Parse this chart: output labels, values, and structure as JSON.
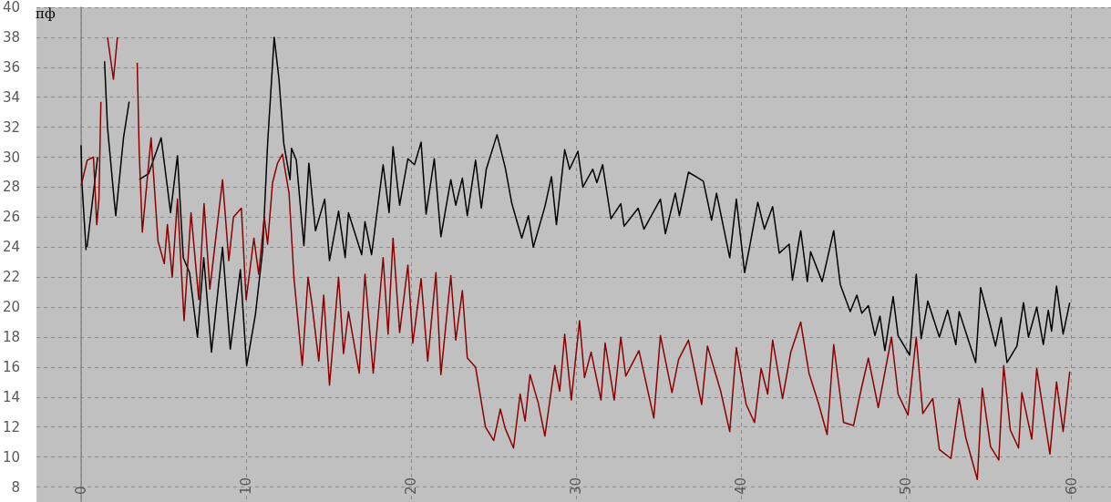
{
  "chart_data": {
    "type": "line",
    "ylabel": "пф",
    "xlim": [
      -2.7,
      62.4
    ],
    "ylim": [
      7,
      40
    ],
    "xticks": [
      0,
      10,
      20,
      30,
      40,
      50,
      60
    ],
    "yticks": [
      8,
      10,
      12,
      14,
      16,
      18,
      20,
      22,
      24,
      26,
      28,
      30,
      32,
      34,
      36,
      38,
      40
    ],
    "grid": true,
    "marker": "none",
    "line_style": "solid",
    "series": [
      {
        "color": "#000000",
        "x": [
          0.0,
          0.05,
          0.3,
          0.33,
          0.36,
          1.0,
          1.24,
          1.42,
          1.6,
          2.0,
          2.1,
          2.57,
          2.91,
          2.98,
          3.52,
          4.09,
          4.85,
          5.42,
          5.84,
          6.19,
          6.57,
          7.05,
          7.43,
          7.9,
          8.57,
          9.04,
          9.65,
          10.03,
          10.56,
          11.0,
          11.3,
          11.7,
          11.99,
          12.28,
          12.66,
          12.75,
          13.04,
          13.5,
          13.8,
          14.2,
          14.76,
          15.05,
          15.6,
          16.0,
          16.2,
          17.0,
          17.2,
          17.6,
          18.3,
          18.66,
          18.9,
          19.3,
          19.8,
          20.2,
          20.6,
          20.9,
          21.4,
          21.8,
          22.4,
          22.7,
          23.1,
          23.4,
          23.9,
          24.25,
          24.55,
          25.2,
          25.7,
          26.1,
          26.7,
          27.1,
          27.4,
          28.1,
          28.5,
          28.8,
          29.3,
          29.6,
          30.1,
          30.4,
          31.0,
          31.25,
          31.6,
          32.1,
          32.7,
          32.9,
          33.75,
          34.1,
          35.1,
          35.4,
          36.0,
          36.25,
          36.8,
          37.7,
          38.2,
          38.5,
          39.3,
          39.7,
          40.2,
          40.5,
          41.0,
          41.4,
          41.9,
          42.3,
          42.9,
          43.1,
          43.6,
          44.0,
          44.2,
          44.9,
          45.6,
          46.0,
          46.6,
          47.0,
          47.3,
          47.7,
          48.1,
          48.4,
          48.7,
          49.2,
          49.5,
          50.2,
          50.6,
          50.9,
          51.3,
          52.0,
          52.5,
          53.0,
          53.2,
          54.2,
          54.5,
          55.0,
          55.4,
          55.75,
          56.1,
          56.7,
          57.1,
          57.4,
          57.9,
          58.3,
          58.6,
          58.8,
          59.1,
          59.5,
          59.9
        ],
        "values": [
          30.8,
          28.3,
          23.8,
          null,
          24.0,
          30.0,
          null,
          36.4,
          32.0,
          27.2,
          26.1,
          31.3,
          33.7,
          null,
          28.5,
          28.9,
          31.3,
          26.3,
          30.1,
          23.3,
          22.3,
          18.0,
          23.3,
          17.0,
          24.0,
          17.2,
          22.5,
          16.1,
          19.5,
          23.8,
          30.9,
          38.0,
          35.2,
          30.9,
          28.5,
          30.6,
          29.8,
          24.1,
          29.6,
          25.1,
          27.2,
          23.1,
          26.4,
          23.3,
          26.3,
          23.5,
          25.7,
          23.5,
          29.5,
          26.3,
          30.7,
          26.8,
          29.9,
          29.5,
          31.0,
          26.2,
          29.9,
          24.7,
          28.5,
          26.8,
          28.6,
          26.1,
          29.8,
          26.6,
          29.2,
          31.5,
          29.3,
          26.9,
          24.6,
          26.1,
          24.0,
          26.7,
          28.7,
          25.5,
          30.5,
          29.2,
          30.4,
          28.0,
          29.2,
          28.3,
          29.5,
          25.9,
          26.9,
          25.4,
          26.6,
          25.2,
          27.2,
          24.9,
          27.6,
          26.1,
          29.0,
          28.4,
          25.8,
          27.6,
          23.3,
          27.2,
          22.3,
          24.0,
          27.0,
          25.2,
          26.7,
          23.6,
          24.2,
          21.8,
          25.1,
          21.7,
          23.7,
          21.7,
          25.1,
          21.5,
          19.7,
          20.8,
          19.6,
          20.1,
          18.1,
          19.4,
          17.1,
          20.7,
          18.1,
          16.8,
          22.2,
          17.9,
          20.4,
          18.0,
          19.8,
          17.5,
          19.7,
          16.3,
          21.3,
          19.2,
          17.4,
          19.3,
          16.3,
          17.4,
          20.3,
          18.0,
          20.0,
          17.5,
          19.8,
          18.4,
          21.4,
          18.2,
          20.3
        ]
      },
      {
        "color": "#8b0000",
        "x": [
          0.0,
          0.37,
          0.75,
          0.95,
          1.08,
          1.2,
          1.5,
          1.6,
          1.96,
          2.2,
          2.5,
          3.4,
          3.52,
          3.71,
          4.24,
          4.66,
          5.04,
          5.23,
          5.52,
          5.84,
          6.24,
          6.66,
          7.13,
          7.45,
          7.8,
          8.18,
          8.57,
          8.95,
          9.23,
          9.71,
          10.0,
          10.47,
          10.76,
          11.1,
          11.3,
          11.6,
          11.9,
          12.2,
          12.6,
          12.9,
          13.4,
          13.75,
          14.0,
          14.4,
          14.7,
          15.05,
          15.6,
          15.9,
          16.2,
          16.85,
          17.2,
          17.7,
          18.3,
          18.6,
          18.9,
          19.3,
          19.8,
          20.1,
          20.6,
          21.0,
          21.5,
          21.8,
          22.4,
          22.7,
          23.1,
          23.4,
          23.9,
          24.5,
          25.0,
          25.4,
          25.7,
          26.2,
          26.6,
          26.9,
          27.2,
          27.7,
          28.1,
          28.7,
          29.0,
          29.3,
          29.7,
          30.2,
          30.5,
          30.9,
          31.5,
          31.75,
          32.3,
          32.7,
          33.0,
          33.8,
          34.7,
          35.1,
          35.8,
          36.2,
          36.8,
          37.6,
          37.95,
          38.75,
          39.3,
          39.7,
          40.3,
          40.8,
          41.2,
          41.6,
          41.9,
          42.5,
          43.0,
          43.6,
          44.1,
          44.7,
          45.2,
          45.6,
          46.2,
          46.8,
          47.2,
          47.7,
          48.3,
          49.1,
          49.5,
          50.1,
          50.6,
          51.0,
          51.6,
          52.0,
          52.7,
          53.2,
          53.6,
          54.3,
          54.6,
          55.1,
          55.6,
          55.9,
          56.3,
          56.8,
          57.0,
          57.6,
          57.9,
          58.7,
          59.1,
          59.5,
          59.9
        ],
        "values": [
          28.1,
          29.8,
          30.0,
          25.5,
          27.2,
          33.7,
          null,
          38.0,
          35.2,
          38.0,
          null,
          36.3,
          30.4,
          25.0,
          31.3,
          24.4,
          22.9,
          25.5,
          22.0,
          27.2,
          19.1,
          26.3,
          20.5,
          26.9,
          21.2,
          24.8,
          28.5,
          23.1,
          26.0,
          26.6,
          20.5,
          24.6,
          22.2,
          26.0,
          24.2,
          28.3,
          29.6,
          30.2,
          27.6,
          21.9,
          16.1,
          22.0,
          20.1,
          16.4,
          20.8,
          14.8,
          22.0,
          16.9,
          19.7,
          15.6,
          22.2,
          15.6,
          23.3,
          18.2,
          24.6,
          18.3,
          22.8,
          17.6,
          21.9,
          16.4,
          22.3,
          15.5,
          22.1,
          17.8,
          21.1,
          16.6,
          16.0,
          12.0,
          11.1,
          13.2,
          11.9,
          10.6,
          14.2,
          12.4,
          15.5,
          13.6,
          11.4,
          16.1,
          14.4,
          18.2,
          13.8,
          19.1,
          15.3,
          17.0,
          13.8,
          17.6,
          13.8,
          18.0,
          15.4,
          17.1,
          12.6,
          18.1,
          14.3,
          16.5,
          17.8,
          13.5,
          17.4,
          14.4,
          11.7,
          17.3,
          13.5,
          12.3,
          15.9,
          14.2,
          17.8,
          13.9,
          17.0,
          19.0,
          15.6,
          13.5,
          11.5,
          17.5,
          12.3,
          12.1,
          14.2,
          16.6,
          13.3,
          18.0,
          14.2,
          12.8,
          18.0,
          12.9,
          13.9,
          10.5,
          9.9,
          13.9,
          11.3,
          8.5,
          14.6,
          10.7,
          9.8,
          16.1,
          11.8,
          10.6,
          14.3,
          11.2,
          15.9,
          10.2,
          15.0,
          11.7,
          15.7
        ]
      }
    ]
  }
}
